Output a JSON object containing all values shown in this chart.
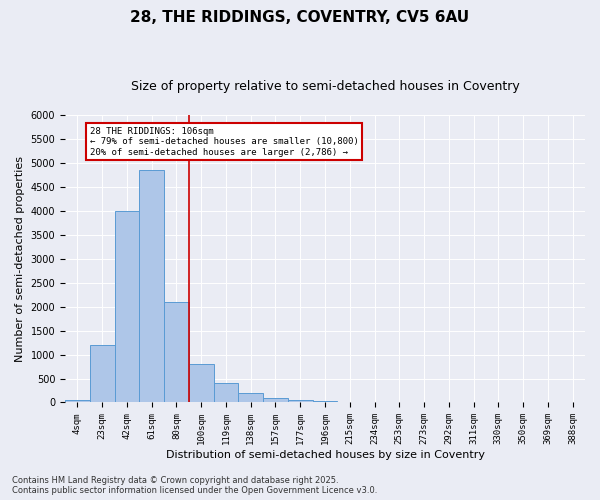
{
  "title1": "28, THE RIDDINGS, COVENTRY, CV5 6AU",
  "title2": "Size of property relative to semi-detached houses in Coventry",
  "xlabel": "Distribution of semi-detached houses by size in Coventry",
  "ylabel": "Number of semi-detached properties",
  "categories": [
    "4sqm",
    "23sqm",
    "42sqm",
    "61sqm",
    "80sqm",
    "100sqm",
    "119sqm",
    "138sqm",
    "157sqm",
    "177sqm",
    "196sqm",
    "215sqm",
    "234sqm",
    "253sqm",
    "273sqm",
    "292sqm",
    "311sqm",
    "330sqm",
    "350sqm",
    "369sqm",
    "388sqm"
  ],
  "values": [
    60,
    1200,
    4000,
    4850,
    2100,
    800,
    400,
    200,
    100,
    60,
    30,
    0,
    0,
    0,
    0,
    0,
    0,
    0,
    0,
    0,
    0
  ],
  "bar_color": "#aec6e8",
  "bar_edge_color": "#5a9bd4",
  "vline_color": "#cc0000",
  "annotation_text": "28 THE RIDDINGS: 106sqm\n← 79% of semi-detached houses are smaller (10,800)\n20% of semi-detached houses are larger (2,786) →",
  "annotation_box_color": "#cc0000",
  "ylim": [
    0,
    6000
  ],
  "yticks": [
    0,
    500,
    1000,
    1500,
    2000,
    2500,
    3000,
    3500,
    4000,
    4500,
    5000,
    5500,
    6000
  ],
  "footer1": "Contains HM Land Registry data © Crown copyright and database right 2025.",
  "footer2": "Contains public sector information licensed under the Open Government Licence v3.0.",
  "bg_color": "#eaecf4",
  "plot_bg_color": "#eaecf4",
  "title1_fontsize": 11,
  "title2_fontsize": 9,
  "tick_fontsize": 6.5,
  "label_fontsize": 8,
  "footer_fontsize": 6,
  "annot_fontsize": 6.5
}
